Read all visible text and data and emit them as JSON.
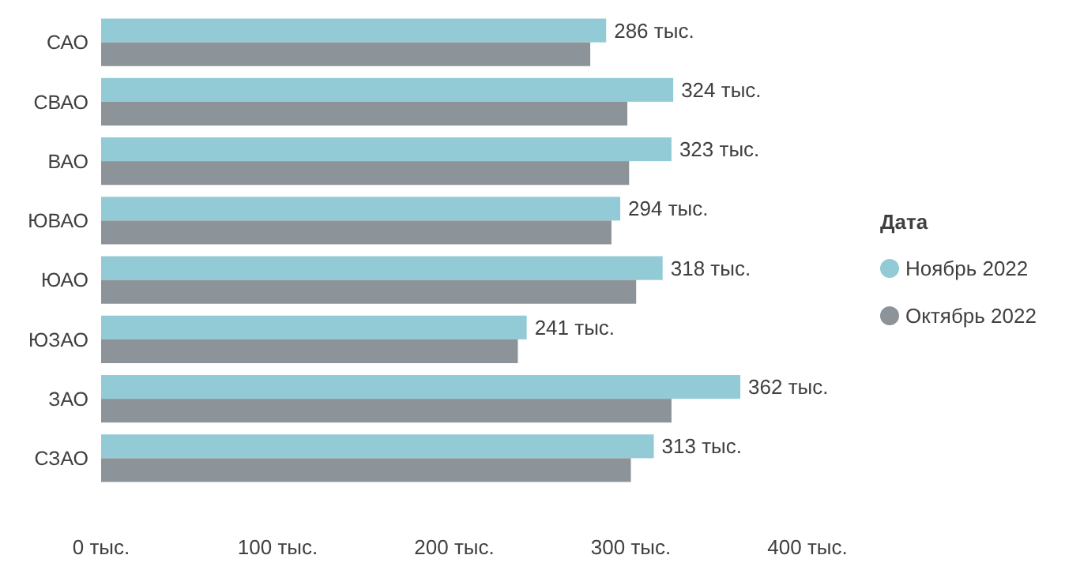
{
  "chart_data": {
    "type": "bar",
    "orientation": "horizontal",
    "legend_title": "Дата",
    "legend": "right",
    "grid": false,
    "marker": "circle",
    "categories": [
      "САО",
      "СВАО",
      "ВАО",
      "ЮВАО",
      "ЮАО",
      "ЮЗАО",
      "ЗАО",
      "СЗАО"
    ],
    "xlim": [
      0,
      400
    ],
    "xticks": [
      {
        "value": 0,
        "label": "0 тыс."
      },
      {
        "value": 100,
        "label": "100 тыс."
      },
      {
        "value": 200,
        "label": "200 тыс."
      },
      {
        "value": 300,
        "label": "300 тыс."
      },
      {
        "value": 400,
        "label": "400 тыс."
      }
    ],
    "series": [
      {
        "name": "Ноябрь 2022",
        "color": "#92cbd5",
        "values": [
          286,
          324,
          323,
          294,
          318,
          241,
          362,
          313
        ],
        "value_labels": [
          "286 тыс.",
          "324 тыс.",
          "323 тыс.",
          "294 тыс.",
          "318 тыс.",
          "241 тыс.",
          "362 тыс.",
          "313 тыс."
        ]
      },
      {
        "name": "Октябрь 2022",
        "color": "#8c9399",
        "values": [
          277,
          298,
          299,
          289,
          303,
          236,
          323,
          300
        ]
      }
    ]
  }
}
